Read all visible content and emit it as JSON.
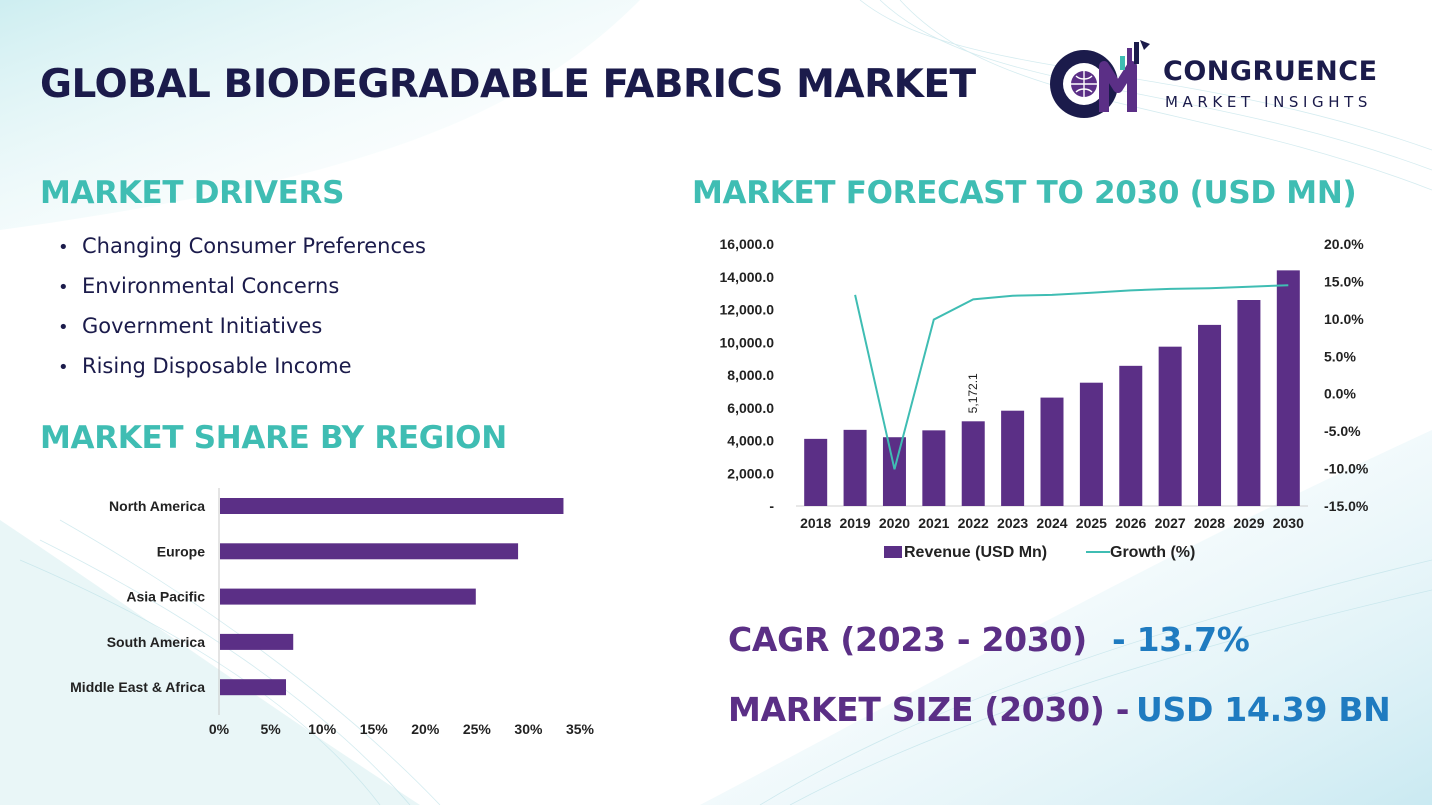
{
  "page": {
    "title": "GLOBAL BIODEGRADABLE FABRICS MARKET",
    "accent_color": "#3fbdb3",
    "title_color": "#1b1b4b",
    "bar_color": "#5b2f86"
  },
  "logo": {
    "name": "CONGRUENCE",
    "subtitle": "MARKET INSIGHTS",
    "icon": "cm-globe-logo-icon"
  },
  "drivers": {
    "heading": "MARKET DRIVERS",
    "items": [
      "Changing Consumer Preferences",
      "Environmental Concerns",
      "Government Initiatives",
      "Rising Disposable Income"
    ]
  },
  "region": {
    "heading": "MARKET SHARE BY REGION"
  },
  "forecast": {
    "heading": "MARKET FORECAST TO 2030 (USD MN)"
  },
  "stats": {
    "cagr_label": "CAGR (2023 - 2030)",
    "cagr_value": "- 13.7%",
    "size_label": "MARKET SIZE (2030) -",
    "size_value": "USD 14.39 BN"
  },
  "chart_data": [
    {
      "type": "bar",
      "orientation": "horizontal",
      "categories": [
        "North America",
        "Europe",
        "Asia Pacific",
        "South America",
        "Middle East & Africa"
      ],
      "values": [
        33.3,
        28.9,
        24.8,
        7.1,
        6.4
      ],
      "xlim": [
        0,
        35
      ],
      "xticks": [
        "0%",
        "5%",
        "10%",
        "15%",
        "20%",
        "25%",
        "30%",
        "35%"
      ],
      "grid": false,
      "color": "#5b2f86"
    },
    {
      "type": "bar",
      "categories": [
        "2018",
        "2019",
        "2020",
        "2021",
        "2022",
        "2023",
        "2024",
        "2025",
        "2026",
        "2027",
        "2028",
        "2029",
        "2030"
      ],
      "series": [
        {
          "name": "Revenue (USD Mn)",
          "type": "bar",
          "axis": "left",
          "color": "#5b2f86",
          "values": [
            4100,
            4650,
            4200,
            4620,
            5172.1,
            5820,
            6620,
            7530,
            8560,
            9730,
            11060,
            12580,
            14390
          ]
        },
        {
          "name": "Growth (%)",
          "type": "line",
          "axis": "right",
          "color": "#3fbdb3",
          "values": [
            null,
            13.2,
            -10.1,
            9.9,
            12.6,
            13.1,
            13.2,
            13.5,
            13.8,
            14.0,
            14.1,
            14.3,
            14.5
          ]
        }
      ],
      "data_labels": [
        {
          "category": "2022",
          "text": "5,172.1"
        }
      ],
      "ylim": [
        0,
        16000
      ],
      "yticks": [
        "-",
        "2,000.0",
        "4,000.0",
        "6,000.0",
        "8,000.0",
        "10,000.0",
        "12,000.0",
        "14,000.0",
        "16,000.0"
      ],
      "y2lim": [
        -15,
        20
      ],
      "y2ticks": [
        "-15.0%",
        "-10.0%",
        "-5.0%",
        "0.0%",
        "5.0%",
        "10.0%",
        "15.0%",
        "20.0%"
      ],
      "legend": "bottom",
      "grid": false
    }
  ]
}
